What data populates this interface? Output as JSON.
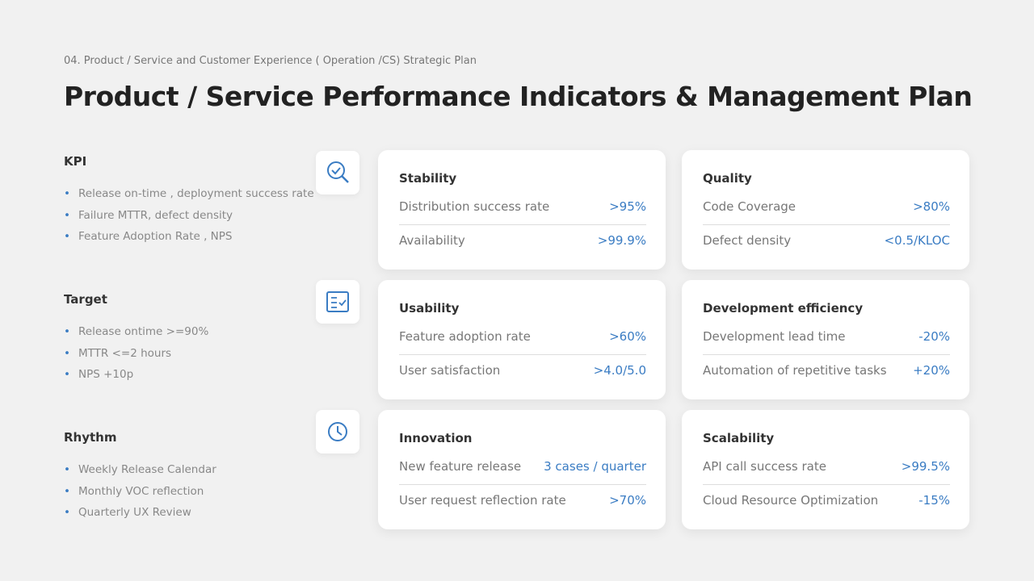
{
  "header": {
    "breadcrumb": "04. Product / Service and Customer Experience ( Operation /CS) Strategic Plan",
    "title": "Product / Service Performance Indicators & Management Plan"
  },
  "sections": [
    {
      "heading": "KPI",
      "items": [
        "Release on-time , deployment success rate",
        "Failure MTTR, defect density",
        "Feature Adoption Rate , NPS"
      ]
    },
    {
      "heading": "Target",
      "items": [
        "Release ontime >=90%",
        "MTTR <=2 hours",
        "NPS +10p"
      ]
    },
    {
      "heading": "Rhythm",
      "items": [
        "Weekly Release Calendar",
        "Monthly VOC reflection",
        "Quarterly UX Review"
      ]
    }
  ],
  "cards": [
    {
      "title": "Stability",
      "rows": [
        {
          "label": "Distribution success rate",
          "value": ">95%"
        },
        {
          "label": "Availability",
          "value": ">99.9%"
        }
      ]
    },
    {
      "title": "Quality",
      "rows": [
        {
          "label": "Code Coverage",
          "value": ">80%"
        },
        {
          "label": "Defect density",
          "value": "<0.5/KLOC"
        }
      ]
    },
    {
      "title": "Usability",
      "rows": [
        {
          "label": "Feature adoption rate",
          "value": ">60%"
        },
        {
          "label": "User satisfaction",
          "value": ">4.0/5.0"
        }
      ]
    },
    {
      "title": "Development efficiency",
      "rows": [
        {
          "label": "Development lead time",
          "value": "-20%"
        },
        {
          "label": "Automation of repetitive tasks",
          "value": "+20%"
        }
      ]
    },
    {
      "title": "Innovation",
      "rows": [
        {
          "label": "New feature release",
          "value": "3 cases / quarter"
        },
        {
          "label": "User request reflection rate",
          "value": ">70%"
        }
      ]
    },
    {
      "title": "Scalability",
      "rows": [
        {
          "label": "API call success rate",
          "value": ">99.5%"
        },
        {
          "label": "Cloud Resource Optimization",
          "value": "-15%"
        }
      ]
    }
  ]
}
